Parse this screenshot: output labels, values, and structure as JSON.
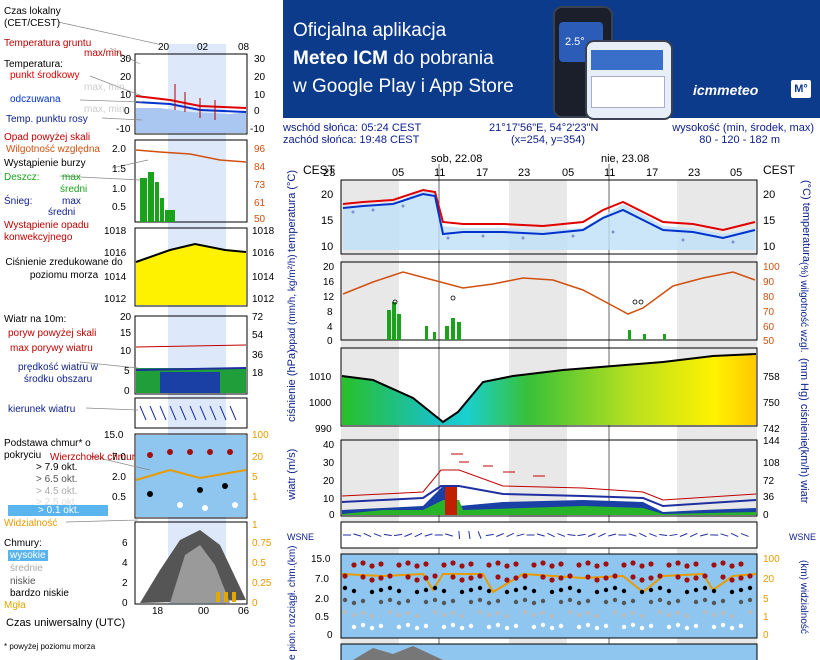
{
  "legend": {
    "local_time_label": "Czas lokalny (CET/CEST)",
    "local_ticks": [
      "20",
      "02",
      "08"
    ],
    "soil_temp": "Temperatura gruntu",
    "max_min": "max/min",
    "temperature": "Temperatura:",
    "midpoint": "punkt środkowy",
    "max_min_gray": "max, min",
    "feels_like": "odczuwana",
    "dew_point": "Temp. punktu rosy",
    "temp_ticks": [
      "30",
      "20",
      "10",
      "0",
      "-10"
    ],
    "precip_above": "Opad powyżej skali",
    "humidity": "Wilgotność względna",
    "storm": "Wystąpienie burzy",
    "rain": "Deszcz:",
    "snow": "Śnieg:",
    "max": "max",
    "avg": "średni",
    "convective": "Wystąpienie opadu konwekcyjnego",
    "precip_ticks": [
      "2.0",
      "1.5",
      "1.0",
      "0.5"
    ],
    "hum_ticks": [
      "96",
      "84",
      "73",
      "61",
      "50"
    ],
    "pressure": "Ciśnienie zredukowane do poziomu morza",
    "pressure_ticks": [
      "1018",
      "1016",
      "1014",
      "1012"
    ],
    "wind": "Wiatr na 10m:",
    "gusts_above": "poryw powyżej skali",
    "max_gust": "max porywy wiatru",
    "wind_avg": "prędkość wiatru w środku obszaru",
    "wind_ticks": [
      "20",
      "15",
      "10",
      "5",
      "0"
    ],
    "wind_ticks_r": [
      "72",
      "54",
      "36",
      "18"
    ],
    "wind_dir": "kierunek wiatru",
    "cloud_top": "Wierzchołek chmur",
    "cloud_base": "Podstawa chmur* o pokryciu",
    "okt1": "> 7.9 okt.",
    "okt2": "> 6.5 okt.",
    "okt3": "> 4.5 okt.",
    "okt4": "> 2.5 okt.",
    "okt5": "> 0.1 okt.",
    "visibility": "Widzialność",
    "cb_ticks": [
      "15.0",
      "7.0",
      "2.0",
      "0.5"
    ],
    "vis_ticks": [
      "100",
      "20",
      "5",
      "1"
    ],
    "clouds": "Chmury:",
    "high": "wysokie",
    "mid": "średnie",
    "low": "niskie",
    "very_low": "bardzo niskie",
    "fog": "Mgła",
    "cl_ticks": [
      "6",
      "4",
      "2",
      "0"
    ],
    "cl_ticks_r": [
      "1",
      "0.75",
      "0.5",
      "0.25",
      "0"
    ],
    "utc_label": "Czas uniwersalny (UTC)",
    "utc_ticks": [
      "18",
      "00",
      "06"
    ],
    "footnote": "* powyżej poziomu morza"
  },
  "banner": {
    "line1": "Oficjalna aplikacja",
    "line2_bold": "Meteo ICM",
    "line2_rest": "do pobrania",
    "line3": "w Google Play i App Store",
    "brand": "icmmeteo",
    "badge": "M°",
    "phone_temp": "2.5°"
  },
  "info": {
    "sunrise": "wschód słońca: 05:24 CEST",
    "sunset": "zachód słońca: 19:48 CEST",
    "coords": "21°17'56\"E, 54°2'23\"N",
    "grid": "(x=254, y=354)",
    "height_label": "wysokość (min, środek, max)",
    "height_values": "80 - 120 - 182 m"
  },
  "timeline": {
    "tz": "CEST",
    "day1": "sob, 22.08",
    "day2": "nie, 23.08",
    "hours": [
      "23",
      "05",
      "11",
      "17",
      "23",
      "05",
      "11",
      "17",
      "23",
      "05"
    ]
  },
  "panels": {
    "temp_label_l": "temperatura (°C)",
    "temp_label_r": "(°C) temperatura",
    "temp_ticks": [
      "20",
      "15",
      "10"
    ],
    "precip_label_l": "opad (mm/h, kg/m²/h)",
    "precip_label_r": "(%) wilgotność wzgl.",
    "precip_ticks": [
      "20",
      "16",
      "12",
      "8",
      "4",
      "0"
    ],
    "hum_ticks": [
      "100",
      "90",
      "80",
      "70",
      "60",
      "50"
    ],
    "press_label_l": "ciśnienie (hPa)",
    "press_label_r": "(mm Hg) ciśnienie",
    "press_ticks": [
      "1010",
      "1000",
      "990"
    ],
    "press_ticks_r": [
      "758",
      "750",
      "742"
    ],
    "wind_label_l": "wiatr (m/s)",
    "wind_label_r": "(km/h) wiatr",
    "wind_ticks": [
      "40",
      "30",
      "20",
      "10",
      "0"
    ],
    "wind_ticks_r": [
      "144",
      "108",
      "72",
      "36",
      "0"
    ],
    "compass": "WSNE",
    "cb_label_l": "e pion. rozciągł. chm.(km)",
    "cb_label_r": "(km) widzialność",
    "cb_ticks": [
      "15.0",
      "7.0",
      "2.0",
      "0.5",
      "0"
    ],
    "vis_ticks": [
      "100",
      "20",
      "5",
      "1",
      "0"
    ]
  },
  "colors": {
    "temp_red": "#e00000",
    "temp_blue": "#0033cc",
    "humidity": "#d05010",
    "precip_green": "#1aa31a",
    "pressure_yellow": "#fff200",
    "banner_bg": "#0d3b8c",
    "label_blue": "#0b1e8a"
  }
}
